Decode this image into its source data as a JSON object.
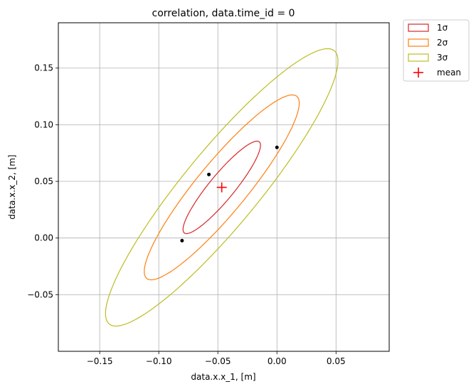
{
  "chart_data": {
    "type": "scatter",
    "title": "correlation, data.time_id = 0",
    "xlabel": "data.x.x_1, [m]",
    "ylabel": "data.x.x_2, [m]",
    "xlim": [
      -0.185,
      0.095
    ],
    "ylim": [
      -0.1,
      0.19
    ],
    "xticks": [
      -0.15,
      -0.1,
      -0.05,
      0.0,
      0.05
    ],
    "xtick_labels": [
      "−0.15",
      "−0.10",
      "−0.05",
      "0.00",
      "0.05"
    ],
    "yticks": [
      -0.05,
      0.0,
      0.05,
      0.1,
      0.15
    ],
    "ytick_labels": [
      "−0.05",
      "0.00",
      "0.05",
      "0.10",
      "0.15"
    ],
    "grid": true,
    "legend_position": "outside-top-right",
    "mean": {
      "x": -0.0467,
      "y": 0.0447,
      "color": "#ff0000"
    },
    "points": [
      {
        "x": -0.0576,
        "y": 0.0561
      },
      {
        "x": -0.0803,
        "y": -0.0023
      },
      {
        "x": 0.0,
        "y": 0.08
      }
    ],
    "ellipses": [
      {
        "label": "1σ",
        "sigma": 1,
        "color": "#d62728"
      },
      {
        "label": "2σ",
        "sigma": 2,
        "color": "#ff7f0e"
      },
      {
        "label": "3σ",
        "sigma": 3,
        "color": "#bcbd22"
      }
    ],
    "covariance": {
      "sxx": 0.001075,
      "sxy": 0.001218,
      "syy": 0.001665
    },
    "legend": [
      {
        "label": "1σ",
        "kind": "ellipse",
        "color": "#d62728"
      },
      {
        "label": "2σ",
        "kind": "ellipse",
        "color": "#ff7f0e"
      },
      {
        "label": "3σ",
        "kind": "ellipse",
        "color": "#bcbd22"
      },
      {
        "label": "mean",
        "kind": "marker",
        "color": "#ff0000"
      }
    ]
  }
}
